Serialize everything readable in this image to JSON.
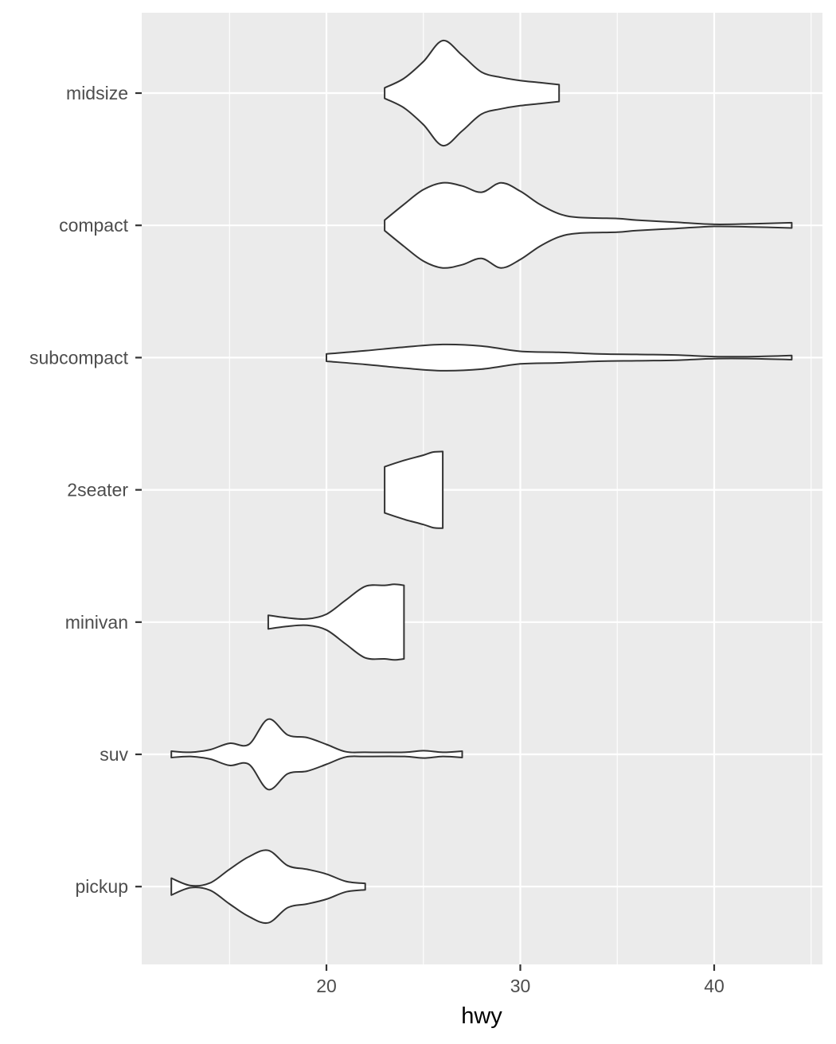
{
  "chart_data": {
    "type": "violin",
    "orientation": "horizontal",
    "xlabel": "hwy",
    "ylabel": "",
    "xlim": [
      10.4,
      45.6
    ],
    "x_ticks": [
      20,
      30,
      40
    ],
    "x_tick_labels": [
      "20",
      "30",
      "40"
    ],
    "x_minor_ticks": [
      15,
      25,
      35,
      45
    ],
    "categories": [
      "midsize",
      "compact",
      "subcompact",
      "2seater",
      "minivan",
      "suv",
      "pickup"
    ],
    "grid": true,
    "panel_color": "#ebebeb",
    "grid_color": "#ffffff",
    "fill_color": "#ffffff",
    "outline_color": "#333333",
    "violins": [
      {
        "category": "midsize",
        "range": [
          23,
          32
        ],
        "profile": [
          [
            23,
            0.1
          ],
          [
            24,
            0.28
          ],
          [
            25,
            0.6
          ],
          [
            26,
            1.0
          ],
          [
            27,
            0.72
          ],
          [
            28,
            0.4
          ],
          [
            29,
            0.3
          ],
          [
            30,
            0.24
          ],
          [
            31,
            0.2
          ],
          [
            32,
            0.16
          ]
        ]
      },
      {
        "category": "compact",
        "range": [
          23,
          44
        ],
        "profile": [
          [
            23,
            0.1
          ],
          [
            24,
            0.4
          ],
          [
            25,
            0.68
          ],
          [
            26,
            0.81
          ],
          [
            27,
            0.75
          ],
          [
            28,
            0.63
          ],
          [
            29,
            0.81
          ],
          [
            30,
            0.65
          ],
          [
            31,
            0.4
          ],
          [
            32,
            0.22
          ],
          [
            33,
            0.15
          ],
          [
            35,
            0.13
          ],
          [
            36,
            0.1
          ],
          [
            38,
            0.06
          ],
          [
            40,
            0.02
          ],
          [
            42,
            0.03
          ],
          [
            44,
            0.05
          ]
        ]
      },
      {
        "category": "subcompact",
        "range": [
          20,
          44
        ],
        "profile": [
          [
            20,
            0.07
          ],
          [
            22,
            0.13
          ],
          [
            24,
            0.2
          ],
          [
            26,
            0.25
          ],
          [
            28,
            0.22
          ],
          [
            30,
            0.12
          ],
          [
            32,
            0.1
          ],
          [
            34,
            0.07
          ],
          [
            36,
            0.06
          ],
          [
            38,
            0.05
          ],
          [
            40,
            0.02
          ],
          [
            42,
            0.02
          ],
          [
            44,
            0.04
          ]
        ]
      },
      {
        "category": "2seater",
        "range": [
          23,
          26
        ],
        "profile": [
          [
            23,
            0.44
          ],
          [
            24,
            0.56
          ],
          [
            25,
            0.66
          ],
          [
            25.5,
            0.72
          ],
          [
            26,
            0.73
          ]
        ]
      },
      {
        "category": "minivan",
        "range": [
          17,
          24
        ],
        "profile": [
          [
            17,
            0.13
          ],
          [
            18,
            0.08
          ],
          [
            19,
            0.06
          ],
          [
            20,
            0.15
          ],
          [
            21,
            0.42
          ],
          [
            22,
            0.68
          ],
          [
            23,
            0.7
          ],
          [
            23.5,
            0.72
          ],
          [
            24,
            0.7
          ]
        ]
      },
      {
        "category": "suv",
        "range": [
          12,
          27
        ],
        "profile": [
          [
            12,
            0.06
          ],
          [
            13,
            0.04
          ],
          [
            14,
            0.09
          ],
          [
            15,
            0.21
          ],
          [
            16,
            0.19
          ],
          [
            17,
            0.67
          ],
          [
            18,
            0.37
          ],
          [
            19,
            0.32
          ],
          [
            20,
            0.19
          ],
          [
            21,
            0.05
          ],
          [
            22,
            0.04
          ],
          [
            24,
            0.04
          ],
          [
            25,
            0.07
          ],
          [
            26,
            0.04
          ],
          [
            27,
            0.06
          ]
        ]
      },
      {
        "category": "pickup",
        "range": [
          12,
          22
        ],
        "profile": [
          [
            12,
            0.16
          ],
          [
            13,
            0.02
          ],
          [
            14,
            0.07
          ],
          [
            15,
            0.33
          ],
          [
            16,
            0.57
          ],
          [
            17,
            0.69
          ],
          [
            18,
            0.4
          ],
          [
            19,
            0.33
          ],
          [
            20,
            0.24
          ],
          [
            21,
            0.1
          ],
          [
            22,
            0.06
          ]
        ]
      }
    ]
  }
}
